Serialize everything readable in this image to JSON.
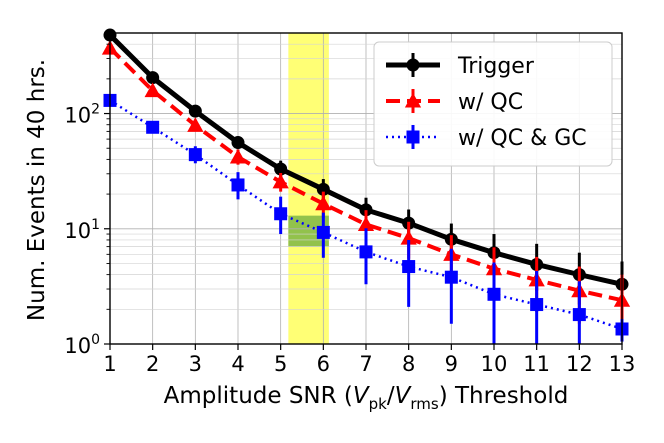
{
  "chart_data": {
    "type": "line",
    "xlabel_prefix": "Amplitude SNR (",
    "xlabel_v1": "V",
    "xlabel_sub1": "pk",
    "xlabel_slash": "/",
    "xlabel_v2": "V",
    "xlabel_sub2": "rms",
    "xlabel_suffix": ") Threshold",
    "ylabel": "Num. Events in 40 hrs.",
    "xlim": [
      1,
      13
    ],
    "ylim": [
      1,
      500
    ],
    "yscale": "log",
    "grid": "on (major and minor)",
    "legend_position": "top-right",
    "x_ticks": [
      "1",
      "2",
      "3",
      "4",
      "5",
      "6",
      "7",
      "8",
      "9",
      "10",
      "11",
      "12",
      "13"
    ],
    "y_ticks": [
      {
        "value": 1,
        "base": "10",
        "exp": "0"
      },
      {
        "value": 10,
        "base": "10",
        "exp": "1"
      },
      {
        "value": 100,
        "base": "10",
        "exp": "2"
      }
    ],
    "highlight_band": {
      "x_range": [
        5.18,
        6.13
      ],
      "color": "#ffff66"
    },
    "highlight_box": {
      "x_range": [
        5.18,
        6.13
      ],
      "y_range": [
        7,
        13
      ],
      "color": "#8cbf4a"
    },
    "series": [
      {
        "name": "Trigger",
        "color": "#000000",
        "style": "solid",
        "marker": "circle",
        "x": [
          1,
          2,
          3,
          4,
          5,
          6,
          7,
          8,
          9,
          10,
          11,
          12,
          13
        ],
        "y": [
          480,
          205,
          105,
          56,
          33,
          22,
          14.6,
          11.2,
          8.1,
          6.2,
          4.9,
          4.0,
          3.3
        ],
        "err_low": [
          20,
          14,
          9,
          7,
          5,
          4.5,
          3.5,
          3.0,
          2.5,
          2.2,
          2.0,
          1.8,
          1.6
        ],
        "err_high": [
          20,
          14,
          10,
          7.5,
          6,
          5,
          4,
          3.5,
          3.0,
          2.8,
          2.5,
          2.2,
          1.9
        ]
      },
      {
        "name": "w/ QC",
        "color": "#ff0000",
        "style": "dashed",
        "marker": "triangle",
        "x": [
          1,
          2,
          3,
          4,
          5,
          6,
          7,
          8,
          9,
          10,
          11,
          12,
          13
        ],
        "y": [
          370,
          158,
          79,
          42,
          25.5,
          16.5,
          10.9,
          8.3,
          6.0,
          4.5,
          3.6,
          2.9,
          2.4
        ],
        "err_low": [
          18,
          12,
          8,
          6,
          4.5,
          4,
          3.2,
          2.8,
          2.3,
          1.9,
          1.7,
          1.4,
          1.2
        ],
        "err_high": [
          18,
          12,
          9,
          6.5,
          5,
          4.5,
          3.6,
          3.2,
          2.8,
          2.4,
          2.1,
          1.8,
          1.6
        ]
      },
      {
        "name": "w/ QC & GC",
        "color": "#0000ff",
        "style": "dotted",
        "marker": "square",
        "x": [
          1,
          2,
          3,
          4,
          5,
          6,
          7,
          8,
          9,
          10,
          11,
          12,
          13
        ],
        "y": [
          130,
          76,
          44,
          24,
          13.5,
          9.3,
          6.3,
          4.7,
          3.8,
          2.7,
          2.2,
          1.8,
          1.35
        ],
        "err_low": [
          12,
          8,
          7,
          6,
          4.5,
          3.7,
          3.0,
          2.6,
          2.3,
          1.9,
          1.6,
          1.4,
          0.3
        ],
        "err_high": [
          13,
          9,
          8,
          7,
          5.5,
          4.5,
          3.8,
          3.3,
          2.9,
          2.4,
          2.1,
          1.7,
          0.3
        ]
      }
    ]
  }
}
